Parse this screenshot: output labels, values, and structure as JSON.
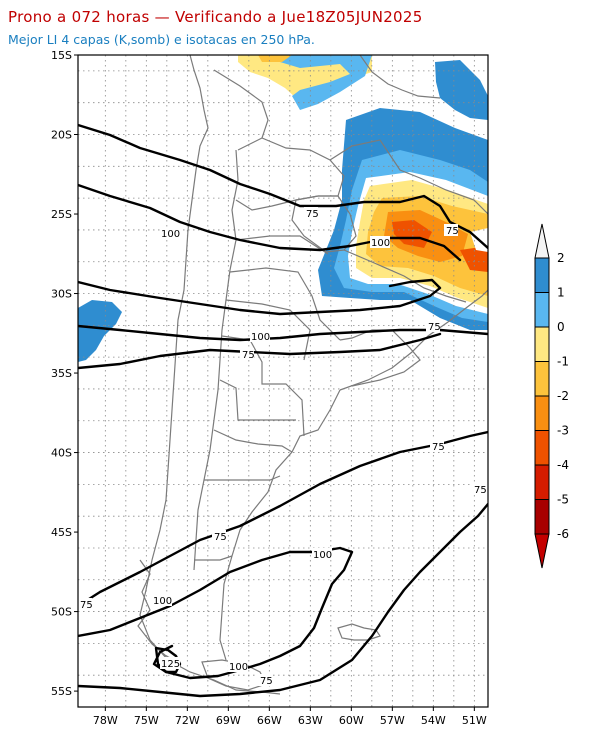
{
  "header": {
    "title": "Prono a 072 horas — Verificando a Jue18Z05JUN2025",
    "subtitle": "Mejor LI 4 capas (K,somb) e isotacas en 250 hPa."
  },
  "axes": {
    "lat_labels": [
      "15S",
      "20S",
      "25S",
      "30S",
      "35S",
      "40S",
      "45S",
      "50S",
      "55S"
    ],
    "lon_labels": [
      "78W",
      "75W",
      "72W",
      "69W",
      "66W",
      "63W",
      "60W",
      "57W",
      "54W",
      "51W"
    ],
    "lat_range": [
      -56,
      -15
    ],
    "lon_range": [
      -80,
      -50
    ],
    "grid": "dotted"
  },
  "colorbar": {
    "labels": [
      "2",
      "1",
      "0",
      "-1",
      "-2",
      "-3",
      "-4",
      "-5",
      "-6"
    ],
    "colors": [
      "#2f8dd0",
      "#59b7f0",
      "#ffffff",
      "#ffe882",
      "#fdc33c",
      "#f98f11",
      "#ef5200",
      "#d51c00",
      "#a80000",
      "#c40000"
    ]
  },
  "isotach_labels": [
    {
      "text": "75",
      "pos": "lat 25S, lon 63W"
    },
    {
      "text": "100",
      "pos": "lat 26S, lon 73W"
    },
    {
      "text": "100",
      "pos": "lat 27S, lon 58W"
    },
    {
      "text": "75",
      "pos": "lat 26S, lon 54W"
    },
    {
      "text": "75",
      "pos": "lat 32S, lon 54W"
    },
    {
      "text": "100",
      "pos": "lat 33S, lon 68W"
    },
    {
      "text": "75",
      "pos": "lat 34S, lon 70W"
    },
    {
      "text": "75",
      "pos": "lat 40S, lon 54W"
    },
    {
      "text": "75",
      "pos": "lat 42S, lon 51W"
    },
    {
      "text": "75",
      "pos": "lat 45S, lon 71W"
    },
    {
      "text": "100",
      "pos": "lat 46S, lon 62W"
    },
    {
      "text": "100",
      "pos": "lat 50S, lon 74W"
    },
    {
      "text": "75",
      "pos": "lat 50S, lon 79W"
    },
    {
      "text": "125",
      "pos": "lat 53S, lon 73W"
    },
    {
      "text": "100",
      "pos": "lat 54S, lon 68W"
    },
    {
      "text": "75",
      "pos": "lat 55S, lon 65W"
    }
  ]
}
